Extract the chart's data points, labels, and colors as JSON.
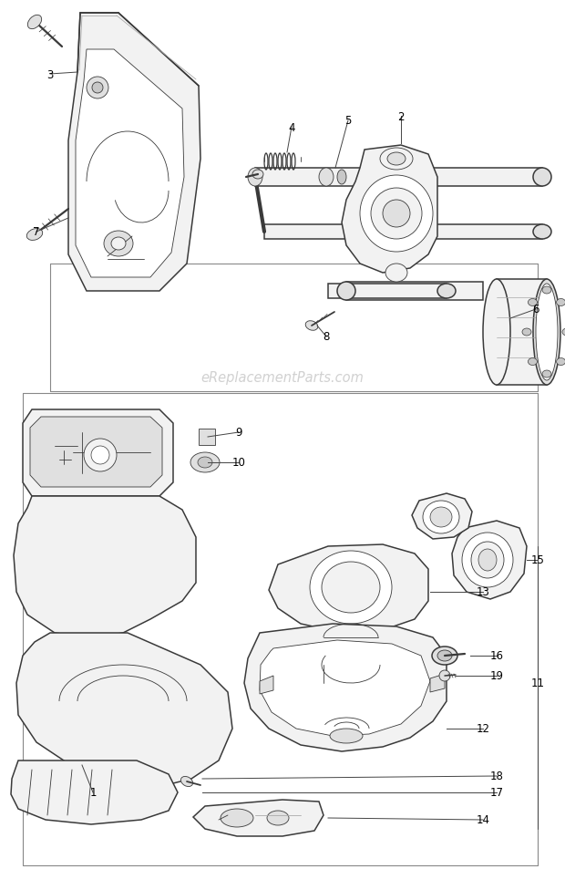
{
  "watermark": "eReplacementParts.com",
  "background_color": "#ffffff",
  "line_color": "#3a3a3a",
  "label_color": "#000000",
  "fig_width": 6.2,
  "fig_height": 9.54,
  "dpi": 100,
  "lw_main": 1.1,
  "lw_thin": 0.6,
  "lw_thick": 1.6,
  "gray_fill": "#f2f2f2",
  "gray_mid": "#e0e0e0",
  "gray_dark": "#c8c8c8",
  "white_fill": "#ffffff"
}
